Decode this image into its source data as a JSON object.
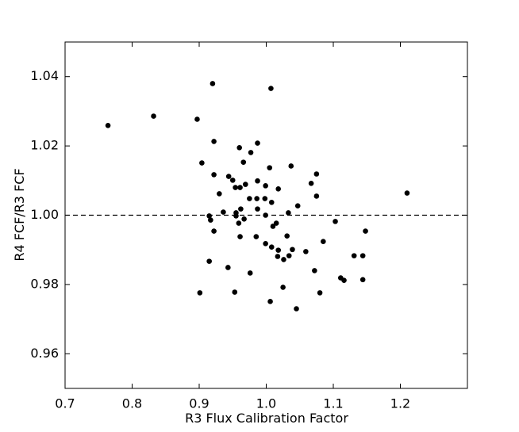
{
  "chart_data": {
    "type": "scatter",
    "xlabel": "R3 Flux Calibration Factor",
    "ylabel": "R4 FCF/R3 FCF",
    "color": "#000000",
    "hline": 1,
    "xlim": [
      0.7,
      1.3
    ],
    "ylim": [
      0.95,
      1.05
    ],
    "xticks": [
      0.7,
      0.8,
      0.9,
      {
        "value": 1,
        "label": "1.0"
      },
      1.1,
      1.2
    ],
    "yticks": [
      0.96,
      0.98,
      {
        "value": 1,
        "label": "1.00"
      },
      1.02,
      1.04
    ],
    "x": [
      0.764,
      0.832,
      0.897,
      0.92,
      1.007,
      0.904,
      0.922,
      0.96,
      0.977,
      0.987,
      0.966,
      1.005,
      1.037,
      1.075,
      0.922,
      0.944,
      0.95,
      0.969,
      0.987,
      0.999,
      0.954,
      0.961,
      1.018,
      1.067,
      0.93,
      0.975,
      0.986,
      0.998,
      1.008,
      1.047,
      1.075,
      1.21,
      0.962,
      0.987,
      0.936,
      0.955,
      1.033,
      0.915,
      0.955,
      0.999,
      0.917,
      0.967,
      0.959,
      1.015,
      1.01,
      1.103,
      0.922,
      1.148,
      0.961,
      0.985,
      1.031,
      1.085,
      0.999,
      1.008,
      1.018,
      1.039,
      1.059,
      1.017,
      1.034,
      1.026,
      1.131,
      1.144,
      0.915,
      0.943,
      0.976,
      1.072,
      1.111,
      1.116,
      1.144,
      1.025,
      0.901,
      0.953,
      1.08,
      1.006,
      1.045
    ],
    "y": [
      1.0259,
      1.0286,
      1.0277,
      1.038,
      1.0366,
      1.0151,
      1.0213,
      1.0195,
      1.0181,
      1.0208,
      1.0153,
      1.0137,
      1.0142,
      1.0119,
      1.0117,
      1.0112,
      1.0101,
      1.0089,
      1.0099,
      1.0085,
      1.008,
      1.008,
      1.0076,
      1.0092,
      1.0062,
      1.0048,
      1.0048,
      1.0048,
      1.0037,
      1.0027,
      1.0055,
      1.0064,
      1.0018,
      1.0018,
      1.0009,
      1.0007,
      1.0007,
      0.9998,
      0.9998,
      1.0,
      0.9986,
      0.9989,
      0.9977,
      0.9977,
      0.9968,
      0.9982,
      0.9954,
      0.9954,
      0.9938,
      0.9938,
      0.994,
      0.9924,
      0.9918,
      0.9908,
      0.9899,
      0.9901,
      0.9895,
      0.9881,
      0.9883,
      0.9872,
      0.9883,
      0.9883,
      0.9867,
      0.9849,
      0.9833,
      0.984,
      0.9819,
      0.9812,
      0.9814,
      0.9792,
      0.9776,
      0.9778,
      0.9776,
      0.9751,
      0.973
    ]
  }
}
